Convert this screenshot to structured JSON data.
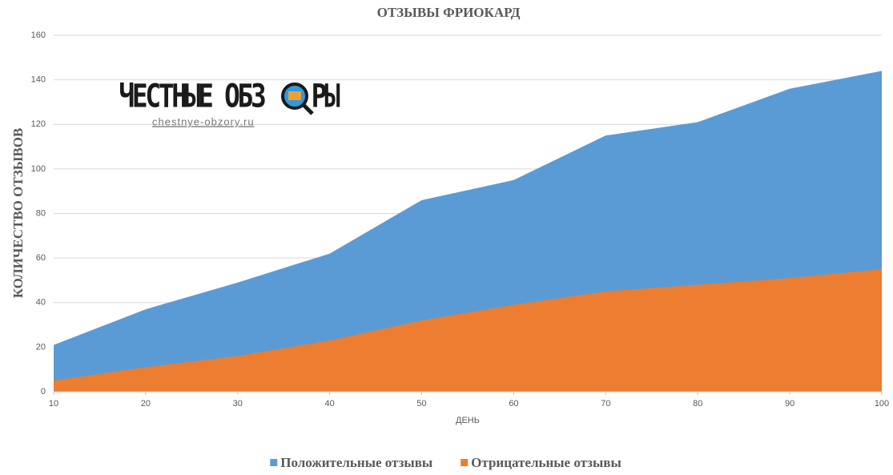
{
  "chart_data": {
    "type": "area",
    "title": "ОТЗЫВЫ ФРИОКАРД",
    "x_label": "ДЕНЬ",
    "y_label": "КОЛИЧЕСТВО ОТЗЫВОВ",
    "x": [
      10,
      20,
      30,
      40,
      50,
      60,
      70,
      80,
      90,
      100
    ],
    "series": [
      {
        "name": "Положительные отзывы",
        "color": "#5b9bd5",
        "values": [
          21,
          37,
          49,
          62,
          86,
          95,
          115,
          121,
          136,
          144
        ]
      },
      {
        "name": "Отрицательные отзывы",
        "color": "#ed7d31",
        "values": [
          5,
          11,
          16,
          23,
          32,
          39,
          45,
          48,
          51,
          55
        ]
      }
    ],
    "xlim": [
      10,
      100
    ],
    "xticks": [
      10,
      20,
      30,
      40,
      50,
      60,
      70,
      80,
      90,
      100
    ],
    "ylim": [
      0,
      160
    ],
    "yticks": [
      0,
      20,
      40,
      60,
      80,
      100,
      120,
      140,
      160
    ],
    "grid": true,
    "legend": "bottom"
  },
  "watermark": {
    "title_parts": [
      "ЧЕСТНЫЕ ОБЗ",
      "РЫ"
    ],
    "url": "chestnye-obzory.ru"
  }
}
